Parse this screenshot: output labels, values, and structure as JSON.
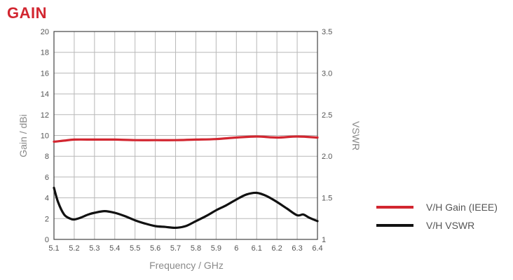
{
  "page": {
    "title": "GAIN"
  },
  "colors": {
    "title": "#d22630",
    "gain": "#d22630",
    "vswr": "#111111",
    "grid": "#b8b8b8",
    "frame": "#444444"
  },
  "chart_data": {
    "type": "line",
    "xlabel": "Frequency / GHz",
    "ylabel": "Gain / dBi",
    "y2label": "VSWR",
    "xlim": [
      5.1,
      6.4
    ],
    "ylim": [
      0,
      20
    ],
    "y2lim": [
      1,
      3.5
    ],
    "x_ticks": [
      "5.1",
      "5.2",
      "5.3",
      "5.4",
      "5.5",
      "5.6",
      "5.7",
      "5.8",
      "5.9",
      "6",
      "6.1",
      "6.2",
      "6.3",
      "6.4"
    ],
    "y_ticks": [
      "0",
      "2",
      "4",
      "6",
      "8",
      "10",
      "12",
      "14",
      "16",
      "18",
      "20"
    ],
    "y2_ticks": [
      "1",
      "1.5",
      "2.0",
      "2.5",
      "3.0",
      "3.5"
    ],
    "grid": true,
    "legend_position": "right",
    "series": [
      {
        "name": "V/H Gain (IEEE)",
        "axis": "left",
        "color": "#d22630",
        "x": [
          5.1,
          5.15,
          5.2,
          5.3,
          5.4,
          5.5,
          5.6,
          5.7,
          5.8,
          5.9,
          6.0,
          6.1,
          6.2,
          6.3,
          6.4
        ],
        "y": [
          9.4,
          9.5,
          9.6,
          9.6,
          9.6,
          9.55,
          9.55,
          9.55,
          9.6,
          9.65,
          9.8,
          9.9,
          9.8,
          9.9,
          9.8
        ]
      },
      {
        "name": "V/H VSWR",
        "axis": "right",
        "color": "#111111",
        "x": [
          5.1,
          5.12,
          5.15,
          5.18,
          5.2,
          5.23,
          5.27,
          5.3,
          5.35,
          5.4,
          5.45,
          5.5,
          5.55,
          5.6,
          5.65,
          5.7,
          5.75,
          5.8,
          5.85,
          5.9,
          5.95,
          6.0,
          6.05,
          6.1,
          6.15,
          6.2,
          6.25,
          6.3,
          6.33,
          6.36,
          6.4
        ],
        "y": [
          1.62,
          1.45,
          1.3,
          1.25,
          1.24,
          1.26,
          1.3,
          1.32,
          1.34,
          1.32,
          1.28,
          1.23,
          1.19,
          1.16,
          1.15,
          1.14,
          1.16,
          1.22,
          1.28,
          1.35,
          1.41,
          1.48,
          1.54,
          1.56,
          1.52,
          1.45,
          1.37,
          1.29,
          1.3,
          1.26,
          1.22
        ]
      }
    ]
  }
}
